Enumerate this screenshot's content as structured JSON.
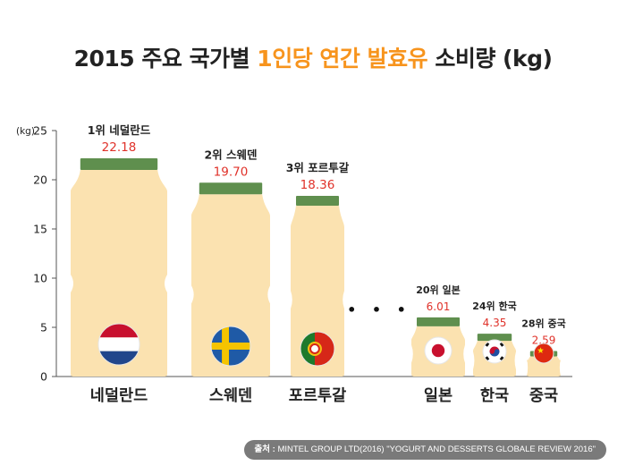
{
  "title_main": "2015 주요 국가별",
  "title_highlight": "1인당 연간 발효유",
  "title_tail": "소비량 (kg)",
  "source_label": "출처 :",
  "source_text": "MINTEL GROUP LTD(2016) \"YOGURT AND DESSERTS GLOBALE REVIEW 2016\"",
  "colors": {
    "bottle": "#fbe2b0",
    "cap": "#5f8f4e",
    "value": "#e0322a",
    "highlight": "#f7941d",
    "axis": "#555555"
  },
  "chart_data": {
    "type": "bar",
    "ylabel": "(kg)",
    "ylim": [
      0,
      25
    ],
    "yticks": [
      0,
      5,
      10,
      15,
      20,
      25
    ],
    "grid": false,
    "gap_marker": "• • •",
    "categories": [
      "네덜란드",
      "스웨덴",
      "포르투갈",
      "일본",
      "한국",
      "중국"
    ],
    "ranks": [
      "1위 네덜란드",
      "2위 스웨덴",
      "3위 포르투갈",
      "20위 일본",
      "24위 한국",
      "28위 중국"
    ],
    "value_labels": [
      "22.18",
      "19.70",
      "18.36",
      "6.01",
      "4.35",
      "2.59"
    ],
    "values": [
      22.18,
      19.7,
      18.36,
      6.01,
      4.35,
      2.59
    ],
    "flags": [
      "netherlands-flag",
      "sweden-flag",
      "portugal-flag",
      "japan-flag",
      "korea-flag",
      "china-flag"
    ]
  }
}
